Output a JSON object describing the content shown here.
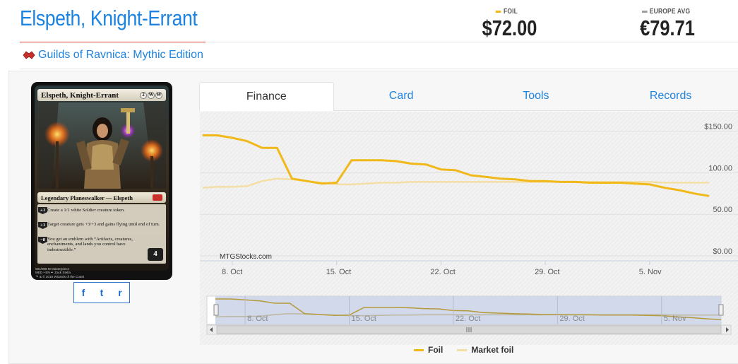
{
  "card_name": "Elspeth, Knight-Errant",
  "set_name": "Guilds of Ravnica: Mythic Edition",
  "prices": [
    {
      "label": "FOIL",
      "value": "$72.00",
      "color": "#f0b919"
    },
    {
      "label": "EUROPE AVG",
      "value": "€79.71",
      "color": "#9aa0a6"
    }
  ],
  "tabs": [
    "Finance",
    "Card",
    "Tools",
    "Records"
  ],
  "active_tab": "Finance",
  "social": {
    "facebook": "f",
    "twitter": "t",
    "reddit": "r"
  },
  "card_image": {
    "name": "Elspeth, Knight-Errant",
    "mana": [
      "2",
      "W",
      "W"
    ],
    "type_line": "Legendary Planeswalker — Elspeth",
    "abilities": [
      {
        "cost": "+1",
        "text": "Create a 1/1 white Soldier creature token."
      },
      {
        "cost": "+1",
        "text": "Target creature gets +3/+3 and gains flying until end of turn."
      },
      {
        "cost": "−8",
        "text": "You get an emblem with “Artifacts, creatures, enchantments, and lands you control have indestructible.”"
      }
    ],
    "loyalty": "4",
    "footer_line1": "001/008 M Masterpiece",
    "footer_line2": "MED • EN ✒ Zack Stella",
    "copyright": "™ & © 2018 Wizards of the Coast"
  },
  "chart_data": {
    "type": "line",
    "credit": "MTGStocks.com",
    "x_ticks": [
      "8. Oct",
      "15. Oct",
      "22. Oct",
      "29. Oct",
      "5. Nov"
    ],
    "y_ticks": [
      "$0.00",
      "50.00",
      "100.00",
      "$150.00"
    ],
    "ylim": [
      0,
      165
    ],
    "x_range_days": [
      "2018-10-08",
      "2018-11-09"
    ],
    "series": [
      {
        "name": "Foil",
        "color": "#f0b919",
        "points": [
          [
            "2018-10-06",
            145
          ],
          [
            "2018-10-07",
            145
          ],
          [
            "2018-10-08",
            142
          ],
          [
            "2018-10-09",
            138
          ],
          [
            "2018-10-10",
            130
          ],
          [
            "2018-10-11",
            130
          ],
          [
            "2018-10-12",
            93
          ],
          [
            "2018-10-13",
            90
          ],
          [
            "2018-10-14",
            87
          ],
          [
            "2018-10-15",
            88
          ],
          [
            "2018-10-16",
            115
          ],
          [
            "2018-10-17",
            115
          ],
          [
            "2018-10-18",
            115
          ],
          [
            "2018-10-19",
            114
          ],
          [
            "2018-10-20",
            111
          ],
          [
            "2018-10-21",
            110
          ],
          [
            "2018-10-22",
            104
          ],
          [
            "2018-10-23",
            103
          ],
          [
            "2018-10-24",
            97
          ],
          [
            "2018-10-25",
            95
          ],
          [
            "2018-10-26",
            93
          ],
          [
            "2018-10-27",
            92
          ],
          [
            "2018-10-28",
            90
          ],
          [
            "2018-10-29",
            90
          ],
          [
            "2018-10-30",
            89
          ],
          [
            "2018-10-31",
            89
          ],
          [
            "2018-11-01",
            88
          ],
          [
            "2018-11-02",
            88
          ],
          [
            "2018-11-03",
            88
          ],
          [
            "2018-11-04",
            87
          ],
          [
            "2018-11-05",
            86
          ],
          [
            "2018-11-06",
            82
          ],
          [
            "2018-11-07",
            79
          ],
          [
            "2018-11-08",
            75
          ],
          [
            "2018-11-09",
            72
          ]
        ]
      },
      {
        "name": "Market foil",
        "color": "#f3dfa6",
        "points": [
          [
            "2018-10-06",
            82
          ],
          [
            "2018-10-07",
            83
          ],
          [
            "2018-10-08",
            83
          ],
          [
            "2018-10-09",
            84
          ],
          [
            "2018-10-10",
            90
          ],
          [
            "2018-10-11",
            93
          ],
          [
            "2018-10-12",
            92
          ],
          [
            "2018-10-13",
            90
          ],
          [
            "2018-10-14",
            88
          ],
          [
            "2018-10-15",
            86
          ],
          [
            "2018-10-16",
            86
          ],
          [
            "2018-10-17",
            87
          ],
          [
            "2018-10-18",
            88
          ],
          [
            "2018-10-19",
            88
          ],
          [
            "2018-10-20",
            89
          ],
          [
            "2018-10-21",
            89
          ],
          [
            "2018-10-22",
            89
          ],
          [
            "2018-10-23",
            89
          ],
          [
            "2018-10-24",
            89
          ],
          [
            "2018-10-25",
            89
          ],
          [
            "2018-10-26",
            89
          ],
          [
            "2018-10-27",
            89
          ],
          [
            "2018-10-28",
            89
          ],
          [
            "2018-10-29",
            89
          ],
          [
            "2018-10-30",
            89
          ],
          [
            "2018-10-31",
            89
          ],
          [
            "2018-11-01",
            89
          ],
          [
            "2018-11-02",
            89
          ],
          [
            "2018-11-03",
            89
          ],
          [
            "2018-11-04",
            89
          ],
          [
            "2018-11-05",
            89
          ],
          [
            "2018-11-06",
            88
          ],
          [
            "2018-11-07",
            88
          ],
          [
            "2018-11-08",
            88
          ],
          [
            "2018-11-09",
            88
          ]
        ]
      }
    ],
    "legend": [
      "Foil",
      "Market foil"
    ],
    "legend_position": "bottom-center",
    "grid": true,
    "navigator": true
  }
}
